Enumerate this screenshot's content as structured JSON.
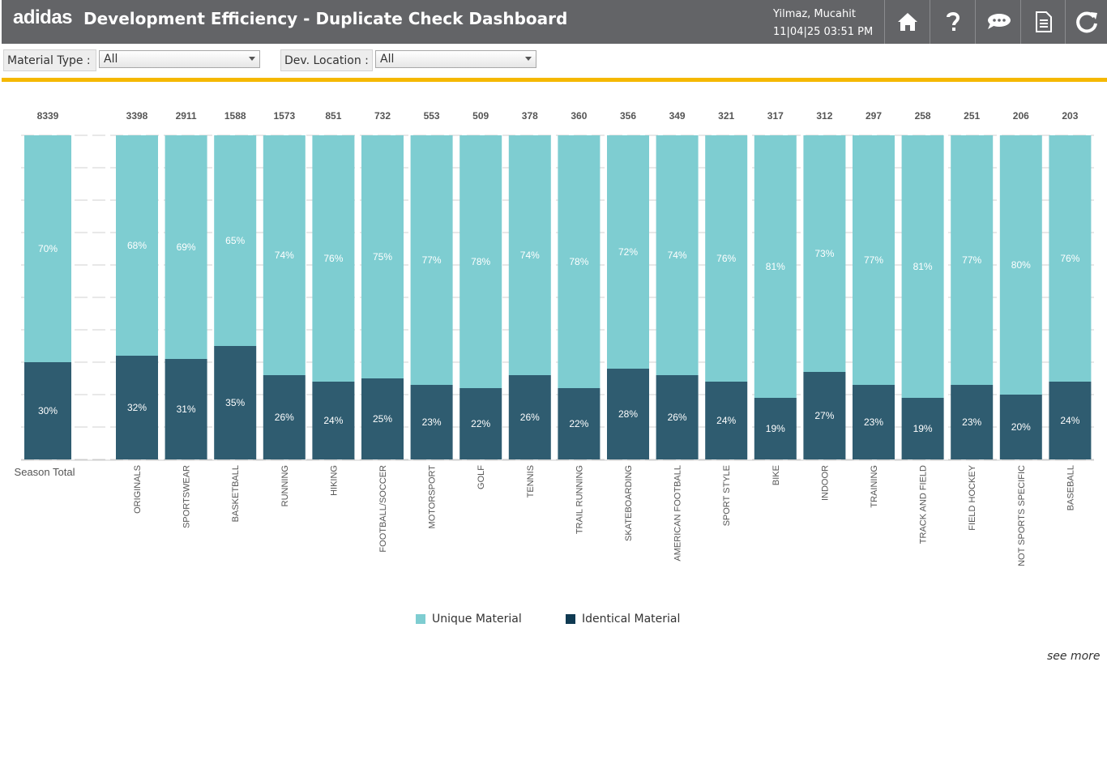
{
  "header": {
    "logo_text": "adidas",
    "title": "Development Efficiency - Duplicate Check Dashboard",
    "user": "Yilmaz, Mucahit",
    "timestamp": "11|04|25 03:51 PM",
    "buttons": [
      "home-icon",
      "help-icon",
      "chat-icon",
      "document-icon",
      "refresh-icon"
    ]
  },
  "filters": {
    "material_type": {
      "label": "Material Type :",
      "value": "All"
    },
    "dev_location": {
      "label": "Dev. Location :",
      "value": "All"
    }
  },
  "colors": {
    "unique": "#7ecdd1",
    "identical": "#2f5c70",
    "accent_bar": "#f5b800",
    "header_bg": "#636467"
  },
  "chart_data": {
    "type": "bar",
    "stacked": true,
    "normalized": true,
    "total": {
      "category": "Season Total",
      "count": 8339,
      "unique_pct": 70,
      "identical_pct": 30
    },
    "categories": [
      "ORIGINALS",
      "SPORTSWEAR",
      "BASKETBALL",
      "RUNNING",
      "HIKING",
      "FOOTBALL/SOCCER",
      "MOTORSPORT",
      "GOLF",
      "TENNIS",
      "TRAIL RUNNING",
      "SKATEBOARDING",
      "AMERICAN FOOTBALL",
      "SPORT STYLE",
      "BIKE",
      "INDOOR",
      "TRAINING",
      "TRACK AND FIELD",
      "FIELD HOCKEY",
      "NOT SPORTS SPECIFIC",
      "BASEBALL"
    ],
    "counts": [
      3398,
      2911,
      1588,
      1573,
      851,
      732,
      553,
      509,
      378,
      360,
      356,
      349,
      321,
      317,
      312,
      297,
      258,
      251,
      206,
      203
    ],
    "series": [
      {
        "name": "Unique Material",
        "values": [
          68,
          69,
          65,
          74,
          76,
          75,
          77,
          78,
          74,
          78,
          72,
          74,
          76,
          81,
          73,
          77,
          81,
          77,
          80,
          76
        ]
      },
      {
        "name": "Identical Material",
        "values": [
          32,
          31,
          35,
          26,
          24,
          25,
          23,
          22,
          26,
          22,
          28,
          26,
          24,
          19,
          27,
          23,
          19,
          23,
          20,
          24
        ]
      }
    ],
    "ylim": [
      0,
      100
    ],
    "grid": true,
    "legend_position": "bottom"
  },
  "footer": {
    "see_more": "see more"
  }
}
